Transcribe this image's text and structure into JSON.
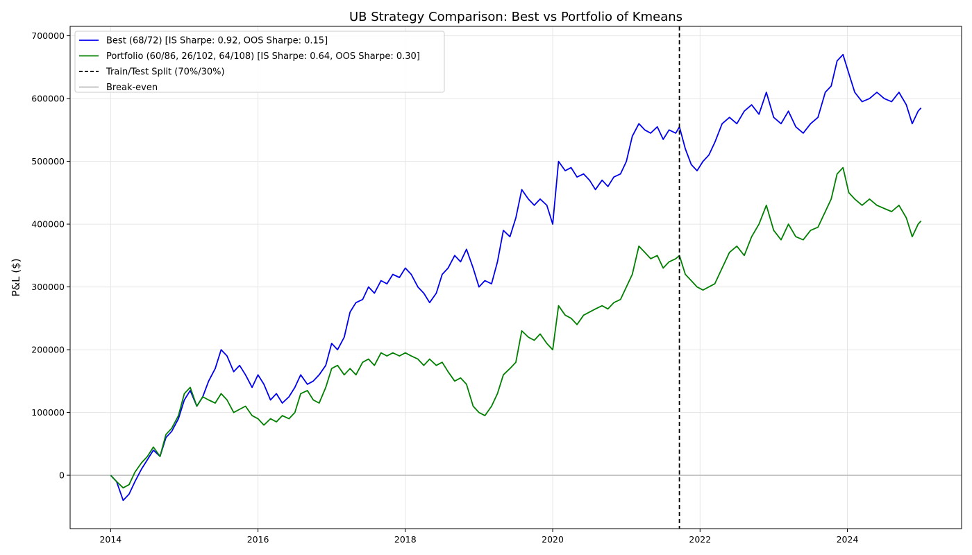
{
  "chart_data": {
    "type": "line",
    "title": "UB Strategy Comparison: Best vs Portfolio of Kmeans",
    "xlabel": "",
    "ylabel": "P&L ($)",
    "xlim": [
      2013.45,
      2025.55
    ],
    "ylim": [
      -85000,
      715000
    ],
    "x_ticks": [
      2014,
      2016,
      2018,
      2020,
      2022,
      2024
    ],
    "x_tick_labels": [
      "2014",
      "2016",
      "2018",
      "2020",
      "2022",
      "2024"
    ],
    "y_ticks": [
      0,
      100000,
      200000,
      300000,
      400000,
      500000,
      600000,
      700000
    ],
    "y_tick_labels": [
      "0",
      "100000",
      "200000",
      "300000",
      "400000",
      "500000",
      "600000",
      "700000"
    ],
    "grid": true,
    "legend_position": "top-left",
    "split_x": 2021.72,
    "series": [
      {
        "name": "Best (68/72) [IS Sharpe: 0.92, OOS Sharpe: 0.15]",
        "color": "#0000ee",
        "x": [
          2014.0,
          2014.08,
          2014.17,
          2014.25,
          2014.33,
          2014.42,
          2014.5,
          2014.58,
          2014.67,
          2014.75,
          2014.83,
          2014.92,
          2015.0,
          2015.08,
          2015.17,
          2015.25,
          2015.33,
          2015.42,
          2015.5,
          2015.58,
          2015.67,
          2015.75,
          2015.83,
          2015.92,
          2016.0,
          2016.08,
          2016.17,
          2016.25,
          2016.33,
          2016.42,
          2016.5,
          2016.58,
          2016.67,
          2016.75,
          2016.83,
          2016.92,
          2017.0,
          2017.08,
          2017.17,
          2017.25,
          2017.33,
          2017.42,
          2017.5,
          2017.58,
          2017.67,
          2017.75,
          2017.83,
          2017.92,
          2018.0,
          2018.08,
          2018.17,
          2018.25,
          2018.33,
          2018.42,
          2018.5,
          2018.58,
          2018.67,
          2018.75,
          2018.83,
          2018.92,
          2019.0,
          2019.08,
          2019.17,
          2019.25,
          2019.33,
          2019.42,
          2019.5,
          2019.58,
          2019.67,
          2019.75,
          2019.83,
          2019.92,
          2020.0,
          2020.08,
          2020.17,
          2020.25,
          2020.33,
          2020.42,
          2020.5,
          2020.58,
          2020.67,
          2020.75,
          2020.83,
          2020.92,
          2021.0,
          2021.08,
          2021.17,
          2021.25,
          2021.33,
          2021.42,
          2021.5,
          2021.58,
          2021.67,
          2021.72,
          2021.8,
          2021.88,
          2021.96,
          2022.04,
          2022.12,
          2022.2,
          2022.3,
          2022.4,
          2022.5,
          2022.6,
          2022.7,
          2022.8,
          2022.9,
          2023.0,
          2023.1,
          2023.2,
          2023.3,
          2023.4,
          2023.5,
          2023.6,
          2023.7,
          2023.78,
          2023.86,
          2023.94,
          2024.02,
          2024.1,
          2024.2,
          2024.3,
          2024.4,
          2024.5,
          2024.6,
          2024.7,
          2024.8,
          2024.88,
          2024.96,
          2025.0
        ],
        "values": [
          0,
          -10000,
          -40000,
          -30000,
          -10000,
          10000,
          25000,
          40000,
          30000,
          60000,
          70000,
          90000,
          120000,
          135000,
          110000,
          125000,
          150000,
          170000,
          200000,
          190000,
          165000,
          175000,
          160000,
          140000,
          160000,
          145000,
          120000,
          130000,
          115000,
          125000,
          140000,
          160000,
          145000,
          150000,
          160000,
          175000,
          210000,
          200000,
          220000,
          260000,
          275000,
          280000,
          300000,
          290000,
          310000,
          305000,
          320000,
          315000,
          330000,
          320000,
          300000,
          290000,
          275000,
          290000,
          320000,
          330000,
          350000,
          340000,
          360000,
          330000,
          300000,
          310000,
          305000,
          340000,
          390000,
          380000,
          410000,
          455000,
          440000,
          430000,
          440000,
          430000,
          400000,
          500000,
          485000,
          490000,
          475000,
          480000,
          470000,
          455000,
          470000,
          460000,
          475000,
          480000,
          500000,
          540000,
          560000,
          550000,
          545000,
          555000,
          535000,
          550000,
          545000,
          555000,
          520000,
          495000,
          485000,
          500000,
          510000,
          530000,
          560000,
          570000,
          560000,
          580000,
          590000,
          575000,
          610000,
          570000,
          560000,
          580000,
          555000,
          545000,
          560000,
          570000,
          610000,
          620000,
          660000,
          670000,
          640000,
          610000,
          595000,
          600000,
          610000,
          600000,
          595000,
          610000,
          590000,
          560000,
          580000,
          585000
        ]
      },
      {
        "name": "Portfolio (60/86, 26/102, 64/108) [IS Sharpe: 0.64, OOS Sharpe: 0.30]",
        "color": "#007f00",
        "x": [
          2014.0,
          2014.08,
          2014.17,
          2014.25,
          2014.33,
          2014.42,
          2014.5,
          2014.58,
          2014.67,
          2014.75,
          2014.83,
          2014.92,
          2015.0,
          2015.08,
          2015.17,
          2015.25,
          2015.33,
          2015.42,
          2015.5,
          2015.58,
          2015.67,
          2015.75,
          2015.83,
          2015.92,
          2016.0,
          2016.08,
          2016.17,
          2016.25,
          2016.33,
          2016.42,
          2016.5,
          2016.58,
          2016.67,
          2016.75,
          2016.83,
          2016.92,
          2017.0,
          2017.08,
          2017.17,
          2017.25,
          2017.33,
          2017.42,
          2017.5,
          2017.58,
          2017.67,
          2017.75,
          2017.83,
          2017.92,
          2018.0,
          2018.08,
          2018.17,
          2018.25,
          2018.33,
          2018.42,
          2018.5,
          2018.58,
          2018.67,
          2018.75,
          2018.83,
          2018.92,
          2019.0,
          2019.08,
          2019.17,
          2019.25,
          2019.33,
          2019.42,
          2019.5,
          2019.58,
          2019.67,
          2019.75,
          2019.83,
          2019.92,
          2020.0,
          2020.08,
          2020.17,
          2020.25,
          2020.33,
          2020.42,
          2020.5,
          2020.58,
          2020.67,
          2020.75,
          2020.83,
          2020.92,
          2021.0,
          2021.08,
          2021.17,
          2021.25,
          2021.33,
          2021.42,
          2021.5,
          2021.58,
          2021.67,
          2021.72,
          2021.8,
          2021.88,
          2021.96,
          2022.04,
          2022.12,
          2022.2,
          2022.3,
          2022.4,
          2022.5,
          2022.6,
          2022.7,
          2022.8,
          2022.9,
          2023.0,
          2023.1,
          2023.2,
          2023.3,
          2023.4,
          2023.5,
          2023.6,
          2023.7,
          2023.78,
          2023.86,
          2023.94,
          2024.02,
          2024.1,
          2024.2,
          2024.3,
          2024.4,
          2024.5,
          2024.6,
          2024.7,
          2024.8,
          2024.88,
          2024.96,
          2025.0
        ],
        "values": [
          0,
          -10000,
          -20000,
          -15000,
          5000,
          20000,
          30000,
          45000,
          30000,
          65000,
          75000,
          95000,
          130000,
          140000,
          110000,
          125000,
          120000,
          115000,
          130000,
          120000,
          100000,
          105000,
          110000,
          95000,
          90000,
          80000,
          90000,
          85000,
          95000,
          90000,
          100000,
          130000,
          135000,
          120000,
          115000,
          140000,
          170000,
          175000,
          160000,
          170000,
          160000,
          180000,
          185000,
          175000,
          195000,
          190000,
          195000,
          190000,
          195000,
          190000,
          185000,
          175000,
          185000,
          175000,
          180000,
          165000,
          150000,
          155000,
          145000,
          110000,
          100000,
          95000,
          110000,
          130000,
          160000,
          170000,
          180000,
          230000,
          220000,
          215000,
          225000,
          210000,
          200000,
          270000,
          255000,
          250000,
          240000,
          255000,
          260000,
          265000,
          270000,
          265000,
          275000,
          280000,
          300000,
          320000,
          365000,
          355000,
          345000,
          350000,
          330000,
          340000,
          345000,
          350000,
          320000,
          310000,
          300000,
          295000,
          300000,
          305000,
          330000,
          355000,
          365000,
          350000,
          380000,
          400000,
          430000,
          390000,
          375000,
          400000,
          380000,
          375000,
          390000,
          395000,
          420000,
          440000,
          480000,
          490000,
          450000,
          440000,
          430000,
          440000,
          430000,
          425000,
          420000,
          430000,
          410000,
          380000,
          400000,
          405000
        ]
      }
    ],
    "legend": [
      {
        "label": "Best (68/72) [IS Sharpe: 0.92, OOS Sharpe: 0.15]",
        "color": "#0000ee",
        "style": "solid"
      },
      {
        "label": "Portfolio (60/86, 26/102, 64/108) [IS Sharpe: 0.64, OOS Sharpe: 0.30]",
        "color": "#007f00",
        "style": "solid"
      },
      {
        "label": "Train/Test Split (70%/30%)",
        "color": "#000000",
        "style": "dashed"
      },
      {
        "label": "Break-even",
        "color": "#bbbbbb",
        "style": "solid"
      }
    ]
  }
}
